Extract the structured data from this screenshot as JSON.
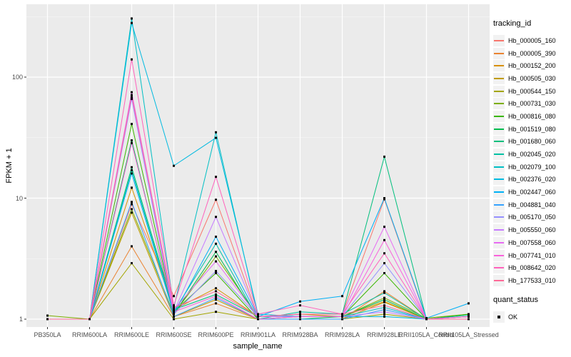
{
  "figure": {
    "background": "#FFFFFF",
    "panel_background": "#EBEBEB",
    "grid_major_color": "#FFFFFF",
    "grid_minor_color": "#FFFFFF",
    "tick_mark_color": "#333333",
    "tick_label_color": "#4D4D4D",
    "point_color": "#000000",
    "legend_key_background": "#F2F2F2"
  },
  "y_axis": {
    "title": "FPKM + 1"
  },
  "x_axis": {
    "title": "sample_name"
  },
  "legend": {
    "tracking_title": "tracking_id",
    "quant_title": "quant_status",
    "quant_label": "OK"
  },
  "chart_data": {
    "type": "line",
    "title": "",
    "xlabel": "sample_name",
    "ylabel": "FPKM + 1",
    "y_scale": "log10",
    "ylim": [
      0.93,
      400
    ],
    "yticks": [
      1,
      10,
      100
    ],
    "ytick_labels": [
      "1",
      "10",
      "100"
    ],
    "minor_gridlines": [
      3.1623,
      31.623,
      316.23
    ],
    "grid": true,
    "legend_position": "right",
    "point_shape": "square",
    "x": [
      "PB350LA",
      "RRIM600LA",
      "RRIM600LE",
      "RRIM600SE",
      "RRIM600PE",
      "RRIM901LA",
      "RRIM928BA",
      "RRIM928LA",
      "RRIM928LE",
      "RRII105LA_Control",
      "RRII105LA_Stressed"
    ],
    "series": [
      {
        "name": "Hb_000005_160",
        "color": "#F8766D",
        "quant_status": "OK",
        "values": [
          1,
          1,
          8.9,
          1.55,
          9.7,
          1.05,
          1.1,
          1.1,
          9.8,
          1,
          1.05
        ]
      },
      {
        "name": "Hb_000005_390",
        "color": "#EA8331",
        "quant_status": "OK",
        "values": [
          1,
          1,
          4.0,
          1.05,
          1.35,
          1,
          1,
          1,
          1.7,
          1,
          1
        ]
      },
      {
        "name": "Hb_000152_200",
        "color": "#D89000",
        "quant_status": "OK",
        "values": [
          1,
          1,
          12.2,
          1.2,
          1.8,
          1.05,
          1.1,
          1.05,
          1.4,
          1,
          1
        ]
      },
      {
        "name": "Hb_000505_030",
        "color": "#C09B00",
        "quant_status": "OK",
        "values": [
          1,
          1,
          7.6,
          1.05,
          1.45,
          1,
          1,
          1,
          1.38,
          1,
          1
        ]
      },
      {
        "name": "Hb_000544_150",
        "color": "#A3A500",
        "quant_status": "OK",
        "values": [
          1,
          1,
          2.9,
          1,
          1.15,
          1,
          1,
          1,
          1.1,
          1,
          1
        ]
      },
      {
        "name": "Hb_000731_030",
        "color": "#7CAE00",
        "quant_status": "OK",
        "values": [
          1.07,
          1,
          8.1,
          1.1,
          3.3,
          1.05,
          1.05,
          1.05,
          1.5,
          1.02,
          1.1
        ]
      },
      {
        "name": "Hb_000816_080",
        "color": "#39B600",
        "quant_status": "OK",
        "values": [
          1,
          1,
          41,
          1.15,
          2.4,
          1,
          1.05,
          1.05,
          2.4,
          1,
          1.1
        ]
      },
      {
        "name": "Hb_001519_080",
        "color": "#00BB4E",
        "quant_status": "OK",
        "values": [
          1,
          1,
          30,
          1.1,
          3.6,
          1,
          1,
          1.05,
          1.45,
          1,
          1.05
        ]
      },
      {
        "name": "Hb_001680_060",
        "color": "#00BF7D",
        "quant_status": "OK",
        "values": [
          1,
          1,
          18,
          1.2,
          1.6,
          1.05,
          1.1,
          1.1,
          22,
          1,
          1.05
        ]
      },
      {
        "name": "Hb_002045_020",
        "color": "#00C1A3",
        "quant_status": "OK",
        "values": [
          1,
          1,
          17,
          1.15,
          4.2,
          1,
          1.15,
          1.1,
          1.65,
          1,
          1.08
        ]
      },
      {
        "name": "Hb_002079_100",
        "color": "#00BFC4",
        "quant_status": "OK",
        "values": [
          1,
          1,
          305,
          1.25,
          35,
          1.05,
          1.05,
          1.05,
          1.25,
          1,
          1
        ]
      },
      {
        "name": "Hb_002376_020",
        "color": "#00BAE0",
        "quant_status": "OK",
        "values": [
          1,
          1,
          280,
          18.5,
          31.5,
          1.1,
          1.05,
          1.05,
          1.05,
          1,
          1
        ]
      },
      {
        "name": "Hb_002447_060",
        "color": "#00B0F6",
        "quant_status": "OK",
        "values": [
          1,
          1,
          16,
          1.1,
          4.8,
          1.05,
          1.4,
          1.55,
          10,
          1.02,
          1.35
        ]
      },
      {
        "name": "Hb_004881_040",
        "color": "#35A2FF",
        "quant_status": "OK",
        "values": [
          1,
          1,
          9.3,
          1.05,
          1.5,
          1,
          1,
          1,
          1.2,
          1,
          1
        ]
      },
      {
        "name": "Hb_005170_050",
        "color": "#9590FF",
        "quant_status": "OK",
        "values": [
          1,
          1,
          66,
          1.1,
          2.5,
          1.05,
          1.05,
          1.05,
          2.9,
          1,
          1.05
        ]
      },
      {
        "name": "Hb_005550_060",
        "color": "#C77CFF",
        "quant_status": "OK",
        "values": [
          1,
          1,
          68,
          1.15,
          7.0,
          1.05,
          1.05,
          1.05,
          1.15,
          1,
          1
        ]
      },
      {
        "name": "Hb_007558_060",
        "color": "#E76BF3",
        "quant_status": "OK",
        "values": [
          1,
          1,
          75,
          1.2,
          3.0,
          1.05,
          1.1,
          1.1,
          5.8,
          1,
          1.05
        ]
      },
      {
        "name": "Hb_007741_010",
        "color": "#FA62DB",
        "quant_status": "OK",
        "values": [
          1,
          1,
          28.5,
          1.15,
          1.55,
          1,
          1.05,
          1.05,
          4.5,
          1,
          1
        ]
      },
      {
        "name": "Hb_008642_020",
        "color": "#FF62BC",
        "quant_status": "OK",
        "values": [
          1,
          1,
          140,
          1.3,
          15,
          1.1,
          1.3,
          1.1,
          3.5,
          1,
          1.05
        ]
      },
      {
        "name": "Hb_177533_010",
        "color": "#FF6A98",
        "quant_status": "OK",
        "values": [
          1,
          1,
          71,
          1.25,
          1.7,
          1.05,
          1.1,
          1.1,
          1.3,
          1,
          1
        ]
      }
    ]
  }
}
